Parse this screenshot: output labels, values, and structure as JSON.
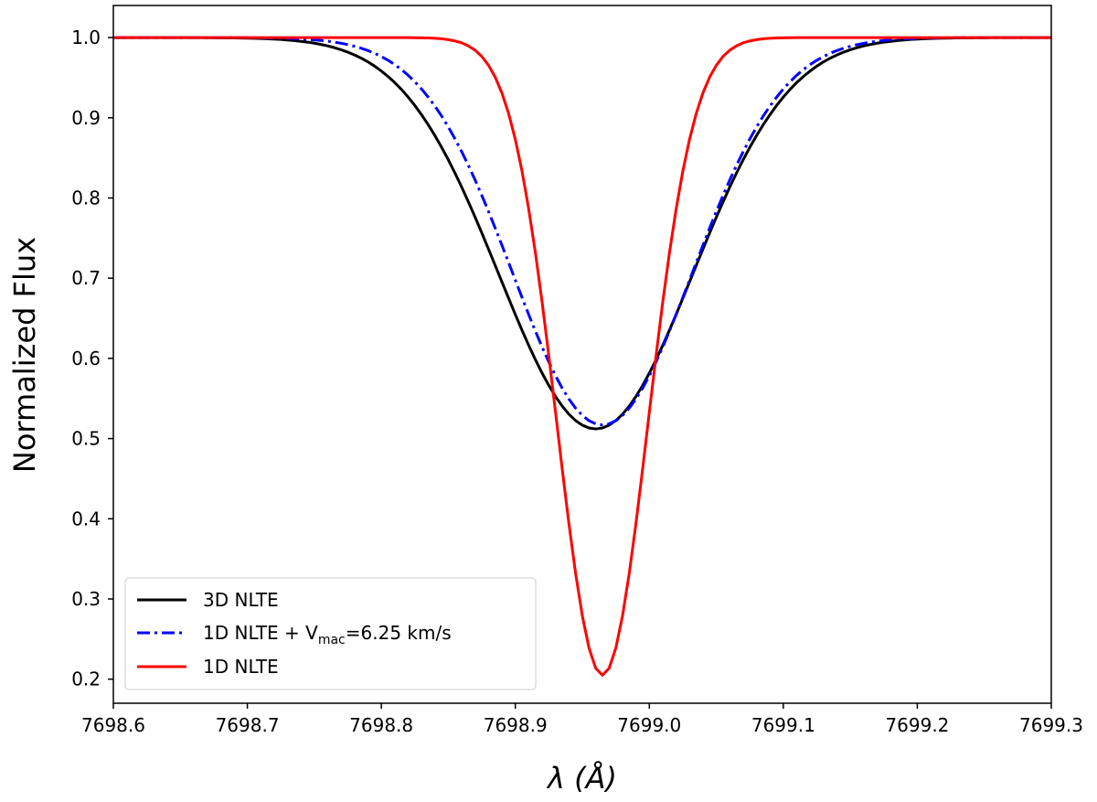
{
  "chart_data": {
    "type": "line",
    "xlabel": "λ (Å)",
    "ylabel": "Normalized Flux",
    "xlim": [
      7698.6,
      7699.3
    ],
    "ylim": [
      0.17,
      1.04
    ],
    "xticks": [
      7698.6,
      7698.7,
      7698.8,
      7698.9,
      7699.0,
      7699.1,
      7699.2,
      7699.3
    ],
    "xtick_labels": [
      "7698.6",
      "7698.7",
      "7698.8",
      "7698.9",
      "7699.0",
      "7699.1",
      "7699.2",
      "7699.3"
    ],
    "yticks": [
      0.2,
      0.3,
      0.4,
      0.5,
      0.6,
      0.7,
      0.8,
      0.9,
      1.0
    ],
    "ytick_labels": [
      "0.2",
      "0.3",
      "0.4",
      "0.5",
      "0.6",
      "0.7",
      "0.8",
      "0.9",
      "1.0"
    ],
    "legend_position": "lower-left",
    "series": [
      {
        "name": "3D NLTE",
        "legend_label": "3D NLTE",
        "color": "#000000",
        "style": "solid",
        "center": 7698.96,
        "depth": 0.488,
        "sigma": 0.102,
        "x": [],
        "values": []
      },
      {
        "name": "1D NLTE + Vmac=6.25 km/s",
        "legend_parts": [
          "1D NLTE + V",
          "mac",
          "=6.25 km/s"
        ],
        "color": "#0000ff",
        "style": "dashdot",
        "center": 7698.965,
        "depth": 0.483,
        "sigma": 0.095,
        "x": [],
        "values": []
      },
      {
        "name": "1D NLTE",
        "legend_label": "1D NLTE",
        "color": "#ff0000",
        "style": "solid",
        "center": 7698.965,
        "depth": 0.795,
        "sigma": 0.048,
        "x": [],
        "values": []
      }
    ]
  }
}
